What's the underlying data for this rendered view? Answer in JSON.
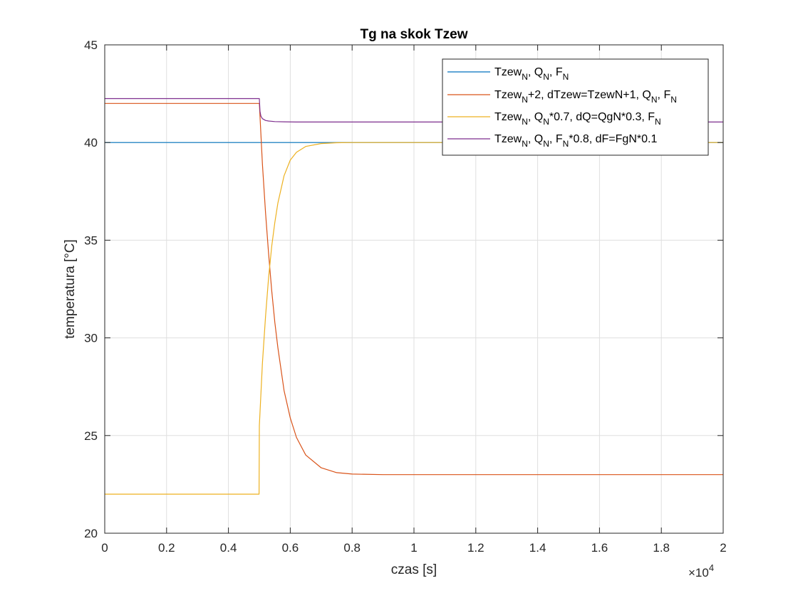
{
  "chart_data": {
    "type": "line",
    "title": "Tg na skok Tzew",
    "xlabel": "czas [s]",
    "ylabel": "temperatura [°C]",
    "xlim": [
      0,
      20000
    ],
    "ylim": [
      20,
      45
    ],
    "x_ticks": [
      0,
      2000,
      4000,
      6000,
      8000,
      10000,
      12000,
      14000,
      16000,
      18000,
      20000
    ],
    "x_tick_labels": [
      "0",
      "0.2",
      "0.4",
      "0.6",
      "0.8",
      "1",
      "1.2",
      "1.4",
      "1.6",
      "1.8",
      "2"
    ],
    "x_exponent_label": "×10",
    "x_exponent_power": "4",
    "y_ticks": [
      20,
      25,
      30,
      35,
      40,
      45
    ],
    "y_tick_labels": [
      "20",
      "25",
      "30",
      "35",
      "40",
      "45"
    ],
    "grid": true,
    "legend_position": "top-right",
    "legend": [
      [
        "Tzew",
        {
          "sub": "N"
        },
        ", Q",
        {
          "sub": "N"
        },
        ", F",
        {
          "sub": "N"
        }
      ],
      [
        "Tzew",
        {
          "sub": "N"
        },
        "+2, dTzew=TzewN+1, Q",
        {
          "sub": "N"
        },
        ", F",
        {
          "sub": "N"
        }
      ],
      [
        "Tzew",
        {
          "sub": "N"
        },
        ", Q",
        {
          "sub": "N"
        },
        "*0.7, dQ=QgN*0.3, F",
        {
          "sub": "N"
        }
      ],
      [
        "Tzew",
        {
          "sub": "N"
        },
        ", Q",
        {
          "sub": "N"
        },
        ", F",
        {
          "sub": "N"
        },
        "*0.8, dF=FgN*0.1"
      ]
    ],
    "series": [
      {
        "color": "#0072BD",
        "x": [
          0,
          20000
        ],
        "y": [
          40,
          40
        ]
      },
      {
        "color": "#D95319",
        "x": [
          0,
          5000,
          5100,
          5200,
          5300,
          5400,
          5500,
          5600,
          5800,
          6000,
          6200,
          6500,
          7000,
          7500,
          8000,
          9000,
          20000
        ],
        "y": [
          42,
          42,
          38.9,
          36.4,
          34.3,
          32.4,
          30.8,
          29.5,
          27.3,
          25.9,
          24.9,
          24.0,
          23.35,
          23.1,
          23.03,
          23.0,
          23.0
        ]
      },
      {
        "color": "#EDB120",
        "x": [
          0,
          4990,
          5000,
          5100,
          5200,
          5300,
          5400,
          5500,
          5600,
          5800,
          6000,
          6200,
          6500,
          7000,
          7500,
          8000,
          9000,
          20000
        ],
        "y": [
          22,
          22,
          25.5,
          28.7,
          31.1,
          33.1,
          34.7,
          35.9,
          36.9,
          38.3,
          39.1,
          39.5,
          39.8,
          39.95,
          39.99,
          40.0,
          40.0,
          40.0
        ]
      },
      {
        "color": "#7E2F8E",
        "x": [
          0,
          5000,
          5020,
          5050,
          5100,
          5200,
          5300,
          5500,
          5800,
          6200,
          7000,
          8000,
          20000
        ],
        "y": [
          42.25,
          42.25,
          41.6,
          41.35,
          41.22,
          41.13,
          41.1,
          41.07,
          41.06,
          41.05,
          41.05,
          41.05,
          41.05
        ]
      }
    ]
  }
}
